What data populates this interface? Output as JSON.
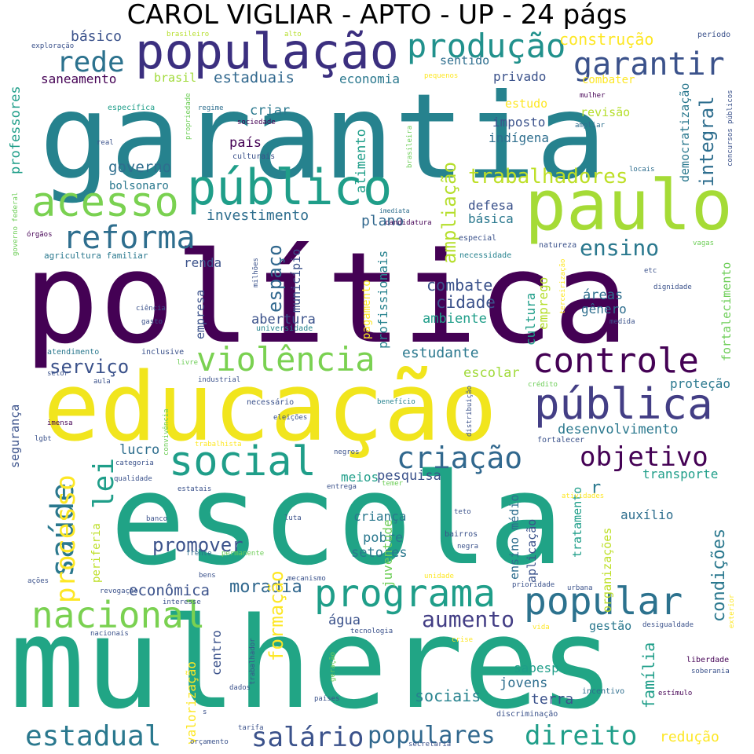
{
  "title": "CAROL VIGLIAR - APTO - UP - 24 págs",
  "palette": {
    "purple_dark": "#440154",
    "indigo": "#3b528b",
    "slate": "#31688e",
    "teal_blue": "#26828e",
    "teal": "#1f9e89",
    "green": "#35b779",
    "lime": "#6ece58",
    "yellow_green": "#b5de2b",
    "yellow": "#fde725"
  },
  "words": {
    "politica": "política",
    "escola": "escola",
    "mulheres": "mulheres",
    "garantia": "garantia",
    "educacao": "educação",
    "paulo": "paulo",
    "publico": "público",
    "populacao": "população",
    "acesso": "acesso",
    "publica": "pública",
    "violencia": "violência",
    "controle": "controle",
    "social": "social",
    "programa": "programa",
    "popular": "popular",
    "nacional": "nacional",
    "reforma": "reforma",
    "producao": "produção",
    "garantir": "garantir",
    "rede": "rede",
    "criacao": "criação",
    "objetivo": "objetivo",
    "estadual": "estadual",
    "salario": "salário",
    "populares": "populares",
    "direito": "direito",
    "saude": "saúde",
    "processo": "processo",
    "lei": "lei",
    "trabalhadores": "trabalhadores",
    "ensino": "ensino",
    "integral": "integral",
    "ampliacao": "ampliação",
    "espaco": "espaço",
    "aumento": "aumento",
    "servico": "serviço",
    "formacao": "formação",
    "condicoes": "condições",
    "promover": "promover",
    "moradia": "moradia",
    "economica": "econômica",
    "familia": "família",
    "sociais": "sociais",
    "reducao": "redução",
    "construcao": "construção",
    "basico": "básico",
    "estaduais": "estaduais",
    "saneamento": "saneamento",
    "economia": "economia",
    "sentido": "sentido",
    "privado": "privado",
    "combater": "combater",
    "democratizacao": "democratização",
    "brasil": "brasil",
    "professores": "professores",
    "criar": "criar",
    "estudo": "estudo",
    "revisao": "revisão",
    "imposto": "imposto",
    "indigena": "indígena",
    "pais": "país",
    "alimento": "alimento",
    "governo": "governo",
    "bolsonaro": "bolsonaro",
    "investimento": "investimento",
    "plano": "plano",
    "defesa": "defesa",
    "basica": "básica",
    "renda": "renda",
    "municipio": "município",
    "profissionais": "profissionais",
    "pagamento": "pagamento",
    "combate": "combate",
    "cidade": "cidade",
    "ambiente": "ambiente",
    "abertura": "abertura",
    "empresa": "empresa",
    "cultura": "cultura",
    "emprego": "emprego",
    "areas": "áreas",
    "genero": "gênero",
    "fortalecimento": "fortalecimento",
    "estudante": "estudante",
    "escolar": "escolar",
    "protecao": "proteção",
    "desenvolvimento": "desenvolvimento",
    "lucro": "lucro",
    "pesquisa": "pesquisa",
    "meios": "meios",
    "transporte": "transporte",
    "r": "r",
    "crianca": "criança",
    "pobre": "pobre",
    "setores": "setores",
    "juventude": "juventude",
    "ensino_medio": "ensino médio",
    "aplicacao": "aplicação",
    "tratamento": "tratamento",
    "organizacoes": "organizações",
    "auxilio": "auxílio",
    "agua": "água",
    "centro": "centro",
    "valorizacao": "valorização",
    "gestao": "gestão",
    "sabesp": "sabesp",
    "jovens": "jovens",
    "terra": "terra",
    "periferia": "periferia",
    "seguranca": "segurança",
    "exploracao": "exploração",
    "brasileiro": "brasileiro",
    "alto": "alto",
    "periodo": "período",
    "pequenos": "pequenos",
    "especifica": "específica",
    "propriedade": "propriedade",
    "regime": "regime",
    "sociedade": "sociedade",
    "mulher": "mulher",
    "ampliar": "ampliar",
    "concursos_publicos": "concursos públicos",
    "real": "real",
    "culturais": "culturais",
    "brasileira": "brasileira",
    "locais": "locais",
    "governo_federal": "governo federal",
    "imediata": "imediata",
    "candidatura": "candidatura",
    "orgaos": "órgãos",
    "especial": "especial",
    "natureza": "natureza",
    "vagas": "vagas",
    "agricultura_familiar": "agricultura familiar",
    "necessidade": "necessidade",
    "milhoes": "milhões",
    "etc": "etc",
    "terceirizacao": "terceirização",
    "dignidade": "dignidade",
    "ciencia": "ciência",
    "gasto": "gasto",
    "universidade": "universidade",
    "medida": "medida",
    "atendimento": "atendimento",
    "inclusive": "inclusive",
    "livre": "livre",
    "setor": "setor",
    "aula": "aula",
    "industrial": "industrial",
    "credito": "crédito",
    "necessario": "necessário",
    "beneficio": "benefício",
    "distribuicao": "distribuição",
    "eleicoes": "eleições",
    "imensa": "imensa",
    "convivencia": "convivência",
    "lgbt": "lgbt",
    "trabalhista": "trabalhista",
    "fortalecer": "fortalecer",
    "categoria": "categoria",
    "negros": "negros",
    "atividades": "atividades",
    "qualidade": "qualidade",
    "entrega": "entrega",
    "temer": "temer",
    "estatais": "estatais",
    "banco": "banco",
    "luta": "luta",
    "teto": "teto",
    "frente": "frente",
    "permanente": "permanente",
    "bairros": "bairros",
    "negra": "negra",
    "acoes": "ações",
    "bens": "bens",
    "unidade": "unidade",
    "prioridade": "prioridade",
    "urbana": "urbana",
    "revogacao": "revogação",
    "interesse": "interesse",
    "mecanismo": "mecanismo",
    "desigualdade": "desigualdade",
    "exterior": "exterior",
    "nacionais": "nacionais",
    "tecnologia": "tecnologia",
    "vida": "vida",
    "trabalhador": "trabalhador",
    "crise": "crise",
    "liberdade": "liberdade",
    "soberania": "soberania",
    "geracao": "geração",
    "dados": "dados",
    "paises": "países",
    "incentivo": "incentivo",
    "estimulo": "estímulo",
    "s": "s",
    "tarifa": "tarifa",
    "discriminacao": "discriminação",
    "orcamento": "orçamento",
    "secretaria": "secretaria"
  }
}
